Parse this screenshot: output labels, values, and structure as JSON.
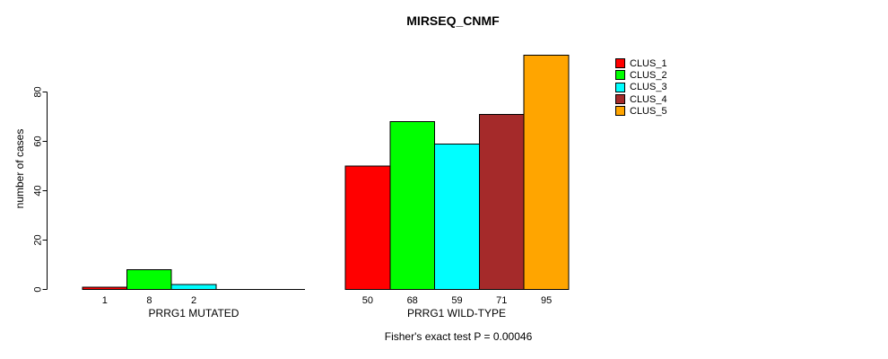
{
  "chart_data": {
    "type": "bar",
    "title": "MIRSEQ_CNMF",
    "ylabel": "number of cases",
    "yticks": [
      0,
      20,
      40,
      60,
      80
    ],
    "ylim": [
      0,
      96
    ],
    "grid": false,
    "legend_position": "top-right-outside",
    "categories": [
      "CLUS_1",
      "CLUS_2",
      "CLUS_3",
      "CLUS_4",
      "CLUS_5"
    ],
    "clusters": [
      {
        "name": "CLUS_1",
        "color": "#FF0000"
      },
      {
        "name": "CLUS_2",
        "color": "#00FF00"
      },
      {
        "name": "CLUS_3",
        "color": "#00FFFF"
      },
      {
        "name": "CLUS_4",
        "color": "#A52A2A"
      },
      {
        "name": "CLUS_5",
        "color": "#FFA500"
      }
    ],
    "groups": [
      {
        "label": "PRRG1 MUTATED",
        "values": [
          1,
          8,
          2,
          0,
          0
        ]
      },
      {
        "label": "PRRG1 WILD-TYPE",
        "values": [
          50,
          68,
          59,
          71,
          95
        ]
      }
    ],
    "axis_color": "#000000",
    "bar_border_color": "#000000",
    "footnote": "Fisher's exact test P = 0.00046"
  }
}
